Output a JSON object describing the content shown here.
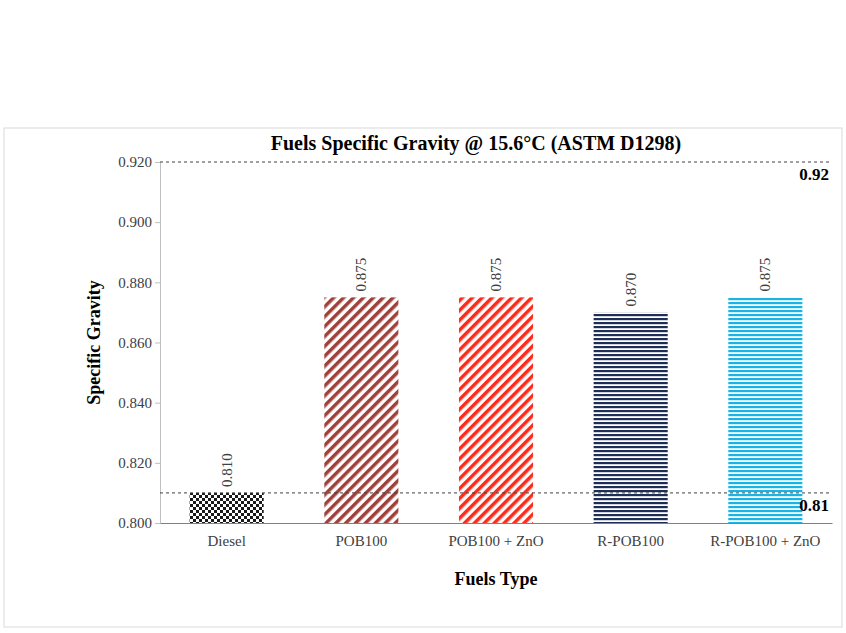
{
  "chart_data": {
    "type": "bar",
    "title": "Fuels Specific Gravity @ 15.6°C (ASTM D1298)",
    "x_label": "Fuels Type",
    "y_label": "Specific Gravity",
    "categories": [
      "Diesel",
      "POB100",
      "POB100 + ZnO",
      "R-POB100",
      "R-POB100 + ZnO"
    ],
    "values": [
      0.81,
      0.875,
      0.875,
      0.87,
      0.875
    ],
    "value_labels": [
      "0.810",
      "0.875",
      "0.875",
      "0.870",
      "0.875"
    ],
    "colors": [
      "#1a1a1a",
      "#a0403a",
      "#ff2a1a",
      "#1f2e55",
      "#19b4e6"
    ],
    "ylim": [
      0.8,
      0.92
    ],
    "yticks": [
      {
        "value": 0.8,
        "label": "0.800"
      },
      {
        "value": 0.82,
        "label": "0.820"
      },
      {
        "value": 0.84,
        "label": "0.840"
      },
      {
        "value": 0.86,
        "label": "0.860"
      },
      {
        "value": 0.88,
        "label": "0.880"
      },
      {
        "value": 0.9,
        "label": "0.900"
      },
      {
        "value": 0.92,
        "label": "0.920"
      }
    ],
    "reference_lines": [
      0.92,
      0.81
    ],
    "grid": false,
    "data_labels": true
  }
}
